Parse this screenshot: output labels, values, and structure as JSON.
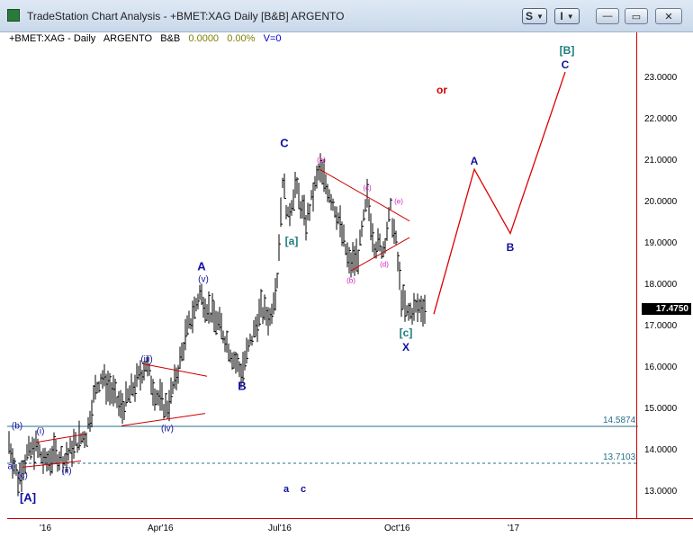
{
  "window": {
    "title": "TradeStation Chart Analysis - +BMET:XAG Daily [B&B] ARGENTO",
    "buttons": {
      "s_label": "S",
      "i_label": "I"
    },
    "min_glyph": "—",
    "max_glyph": "▭",
    "close_glyph": "✕"
  },
  "header": {
    "symbol": "+BMET:XAG - Daily",
    "name": "ARGENTO",
    "study": "B&B",
    "change": "0.0000",
    "change_pct": "0.00%",
    "volume": "V=0"
  },
  "price_axis": {
    "ticks": [
      "23.0000",
      "22.0000",
      "21.0000",
      "20.0000",
      "19.0000",
      "18.0000",
      "17.0000",
      "16.0000",
      "15.0000",
      "14.0000",
      "13.0000"
    ],
    "last_price": "17.4750"
  },
  "time_axis": {
    "ticks": [
      "'16",
      "Apr'16",
      "Jul'16",
      "Oct'16",
      "'17"
    ]
  },
  "horizontal_lines": [
    {
      "value": "14.5874"
    },
    {
      "value": "13.7103"
    }
  ],
  "wave_labels": {
    "bracket_A": "[A]",
    "bracket_a": "[a]",
    "bracket_c": "[c]",
    "bracket_B": "[B]",
    "C_top": "C",
    "A_apr": "A",
    "B_jun": "B",
    "X_oct": "X",
    "A_proj": "A",
    "B_proj": "B",
    "C_proj": "C",
    "or": "or",
    "iii": "(iii)",
    "iv": "(iv)",
    "v": "(v)",
    "ii": "(ii)",
    "i": "(i)",
    "b_jan": "(b)",
    "c_jan": "(c)",
    "a_jan": "a)",
    "pa": "(a)",
    "pb": "(b)",
    "pc": "(c)",
    "pd": "(d)",
    "pe": "(e)",
    "small_a": "a",
    "small_c": "c"
  },
  "colors": {
    "bars": "#000000",
    "projection": "#dd0000",
    "line_solid": "#2a6f8a",
    "line_dashed": "#2a6f8a",
    "navy": "#1010a0",
    "teal": "#1a7d7d",
    "magenta": "#d020c0",
    "axis_border": "#cc0000"
  }
}
